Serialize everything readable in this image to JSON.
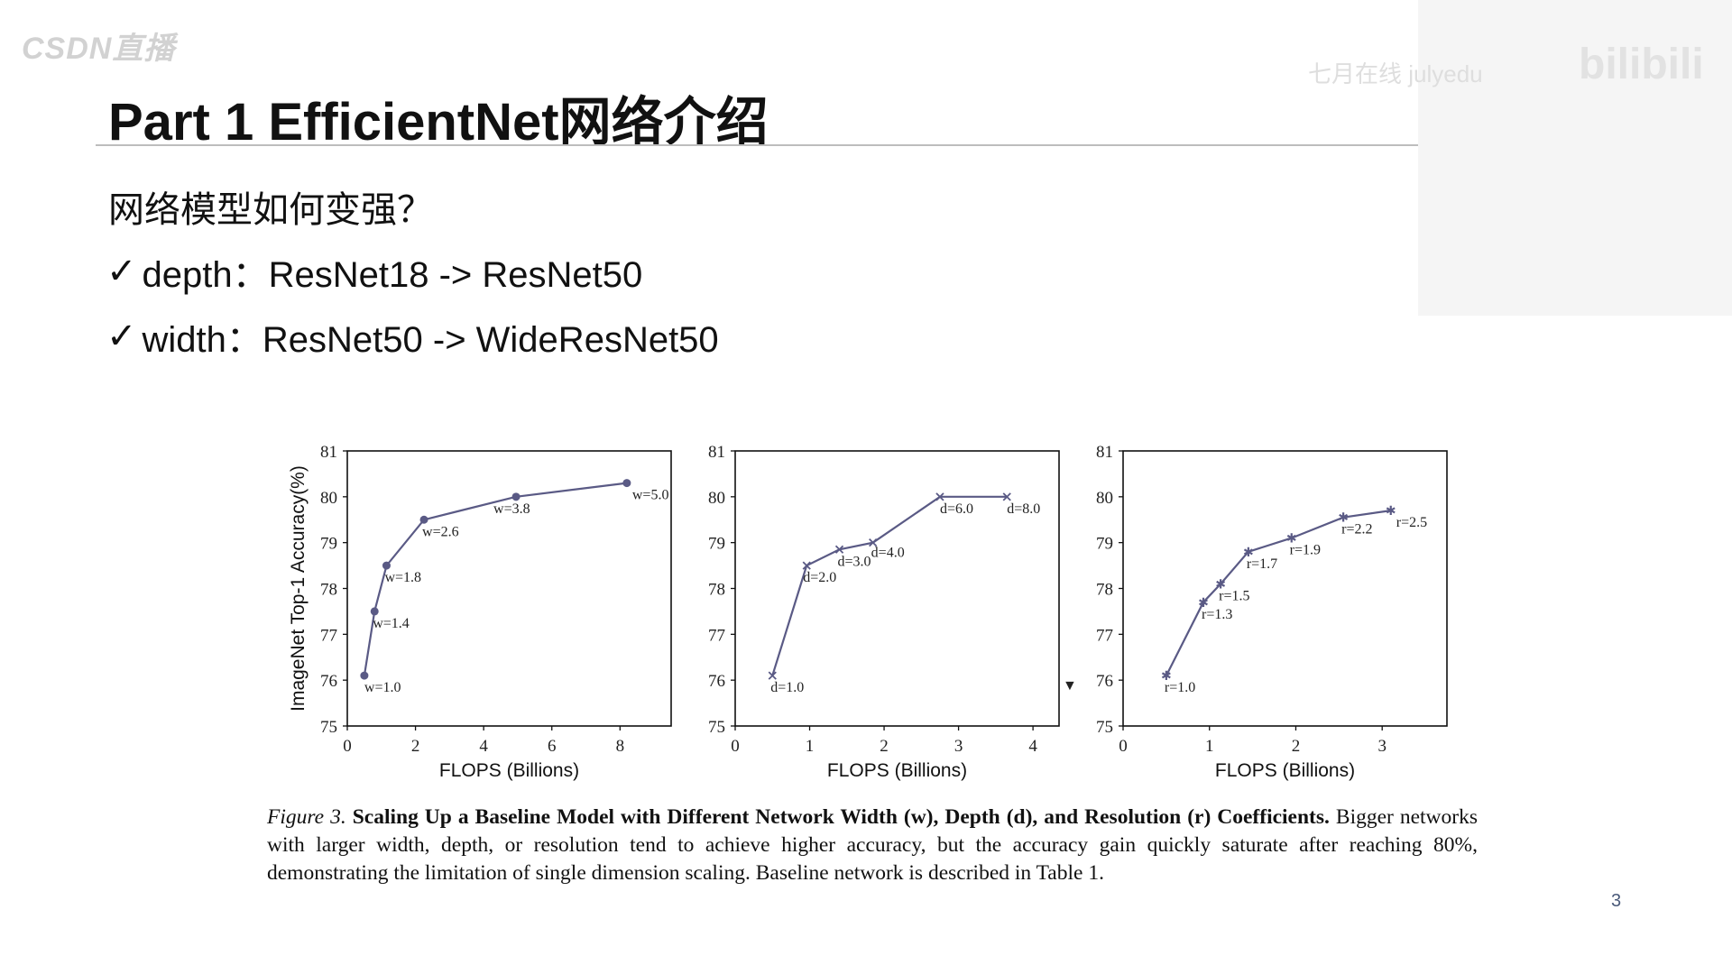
{
  "watermarks": {
    "csdn": "CSDN直播",
    "july": "七月在线 julyedu",
    "bili": "bilibili"
  },
  "slide": {
    "title": "Part 1 EfficientNet网络介绍",
    "question": "网络模型如何变强？",
    "bullets": [
      {
        "check": "✓",
        "text": "depth：ResNet18 -> ResNet50"
      },
      {
        "check": "✓",
        "text": "width：ResNet50 -> WideResNet50"
      }
    ],
    "page_number": "3"
  },
  "caption": {
    "figure": "Figure 3.",
    "bold": "Scaling Up a Baseline Model with Different Network Width (w), Depth (d), and Resolution (r) Coefficients.",
    "rest": "Bigger networks with larger width, depth, or resolution tend to achieve higher accuracy, but the accuracy gain quickly saturate after reaching 80%, demonstrating the limitation of single dimension scaling. Baseline network is described in Table 1."
  },
  "colors": {
    "series": "#5a5a85",
    "axis": "#111111",
    "rule": "#bdbdbd",
    "page_number": "#4a5a7a"
  },
  "chart_data": [
    {
      "type": "line",
      "marker": "circle",
      "xlabel": "FLOPS (Billions)",
      "ylabel": "ImageNet Top-1 Accuracy(%)",
      "xlim": [
        0,
        9.5
      ],
      "ylim": [
        75,
        81
      ],
      "xticks": [
        0,
        2,
        4,
        6,
        8
      ],
      "yticks": [
        75,
        76,
        77,
        78,
        79,
        80,
        81
      ],
      "x": [
        0.5,
        0.8,
        1.15,
        2.25,
        4.95,
        8.2
      ],
      "y": [
        76.1,
        77.5,
        78.5,
        79.5,
        80.0,
        80.3
      ],
      "point_labels": [
        "w=1.0",
        "w=1.4",
        "w=1.8",
        "w=2.6",
        "w=3.8",
        "w=5.0"
      ],
      "grid": false
    },
    {
      "type": "line",
      "marker": "x",
      "xlabel": "FLOPS (Billions)",
      "ylabel": "",
      "xlim": [
        0,
        4.35
      ],
      "ylim": [
        75,
        81
      ],
      "xticks": [
        0,
        1,
        2,
        3,
        4
      ],
      "yticks": [
        75,
        76,
        77,
        78,
        79,
        80,
        81
      ],
      "x": [
        0.5,
        0.96,
        1.4,
        1.85,
        2.75,
        3.65
      ],
      "y": [
        76.1,
        78.5,
        78.85,
        79.0,
        80.0,
        80.0
      ],
      "point_labels": [
        "d=1.0",
        "d=2.0",
        "d=3.0",
        "d=4.0",
        "d=6.0",
        "d=8.0"
      ],
      "grid": false
    },
    {
      "type": "line",
      "marker": "star",
      "xlabel": "FLOPS (Billions)",
      "ylabel": "",
      "xlim": [
        0,
        3.75
      ],
      "ylim": [
        75,
        81
      ],
      "xticks": [
        0,
        1,
        2,
        3
      ],
      "yticks": [
        75,
        76,
        77,
        78,
        79,
        80,
        81
      ],
      "x": [
        0.5,
        0.93,
        1.13,
        1.45,
        1.95,
        2.55,
        3.1
      ],
      "y": [
        76.1,
        77.7,
        78.1,
        78.8,
        79.1,
        79.55,
        79.7
      ],
      "point_labels": [
        "r=1.0",
        "r=1.3",
        "r=1.5",
        "r=1.7",
        "r=1.9",
        "r=2.2",
        "r=2.5"
      ],
      "grid": false
    }
  ]
}
